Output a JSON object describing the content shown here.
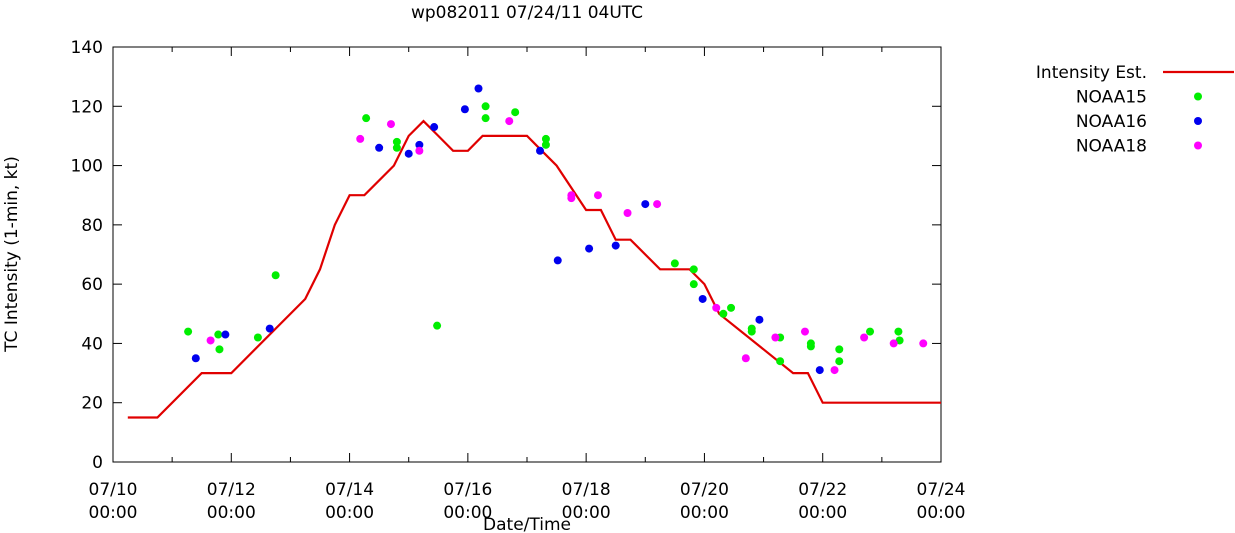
{
  "chart_data": {
    "type": "scatter",
    "title": "wp082011 07/24/11 04UTC",
    "xlabel": "Date/Time",
    "ylabel": "TC Intensity (1-min, kt)",
    "xlim_days": [
      0,
      14
    ],
    "ylim": [
      0,
      140
    ],
    "x_ticks": [
      {
        "day": 0,
        "date": "07/10",
        "time": "00:00"
      },
      {
        "day": 2,
        "date": "07/12",
        "time": "00:00"
      },
      {
        "day": 4,
        "date": "07/14",
        "time": "00:00"
      },
      {
        "day": 6,
        "date": "07/16",
        "time": "00:00"
      },
      {
        "day": 8,
        "date": "07/18",
        "time": "00:00"
      },
      {
        "day": 10,
        "date": "07/20",
        "time": "00:00"
      },
      {
        "day": 12,
        "date": "07/22",
        "time": "00:00"
      },
      {
        "day": 14,
        "date": "07/24",
        "time": "00:00"
      }
    ],
    "y_ticks": [
      0,
      20,
      40,
      60,
      80,
      100,
      120,
      140
    ],
    "legend_position": "outside-right",
    "series": [
      {
        "name": "Intensity Est.",
        "kind": "line",
        "color": "#e00000",
        "points": [
          [
            0.25,
            15
          ],
          [
            0.75,
            15
          ],
          [
            1.5,
            30
          ],
          [
            2.0,
            30
          ],
          [
            3.25,
            55
          ],
          [
            3.5,
            65
          ],
          [
            3.75,
            80
          ],
          [
            4.0,
            90
          ],
          [
            4.25,
            90
          ],
          [
            4.75,
            100
          ],
          [
            5.0,
            110
          ],
          [
            5.25,
            115
          ],
          [
            5.5,
            110
          ],
          [
            5.75,
            105
          ],
          [
            6.0,
            105
          ],
          [
            6.25,
            110
          ],
          [
            7.0,
            110
          ],
          [
            7.25,
            105
          ],
          [
            7.5,
            100
          ],
          [
            8.0,
            85
          ],
          [
            8.25,
            85
          ],
          [
            8.5,
            75
          ],
          [
            8.75,
            75
          ],
          [
            9.25,
            65
          ],
          [
            9.75,
            65
          ],
          [
            10.0,
            60
          ],
          [
            10.25,
            50
          ],
          [
            11.5,
            30
          ],
          [
            11.75,
            30
          ],
          [
            12.0,
            20
          ],
          [
            14.0,
            20
          ]
        ]
      },
      {
        "name": "NOAA15",
        "kind": "points",
        "color": "#00ee00",
        "points": [
          [
            1.27,
            44
          ],
          [
            1.78,
            43
          ],
          [
            1.8,
            38
          ],
          [
            2.45,
            42
          ],
          [
            2.75,
            63
          ],
          [
            4.28,
            116
          ],
          [
            4.8,
            106
          ],
          [
            4.8,
            108
          ],
          [
            5.48,
            46
          ],
          [
            6.3,
            120
          ],
          [
            6.3,
            116
          ],
          [
            6.8,
            118
          ],
          [
            7.32,
            107
          ],
          [
            7.32,
            109
          ],
          [
            9.5,
            67
          ],
          [
            9.82,
            65
          ],
          [
            9.82,
            60
          ],
          [
            10.32,
            50
          ],
          [
            10.45,
            52
          ],
          [
            10.8,
            44
          ],
          [
            10.8,
            45
          ],
          [
            11.28,
            42
          ],
          [
            11.28,
            34
          ],
          [
            11.8,
            40
          ],
          [
            11.8,
            39
          ],
          [
            12.28,
            38
          ],
          [
            12.28,
            34
          ],
          [
            12.8,
            44
          ],
          [
            13.28,
            44
          ],
          [
            13.3,
            41
          ]
        ]
      },
      {
        "name": "NOAA16",
        "kind": "points",
        "color": "#0000ee",
        "points": [
          [
            1.4,
            35
          ],
          [
            1.9,
            43
          ],
          [
            2.65,
            45
          ],
          [
            4.5,
            106
          ],
          [
            5.0,
            104
          ],
          [
            5.18,
            107
          ],
          [
            5.43,
            113
          ],
          [
            5.95,
            119
          ],
          [
            6.18,
            126
          ],
          [
            7.22,
            105
          ],
          [
            7.52,
            68
          ],
          [
            8.05,
            72
          ],
          [
            8.5,
            73
          ],
          [
            9.0,
            87
          ],
          [
            9.97,
            55
          ],
          [
            10.93,
            48
          ],
          [
            11.95,
            31
          ]
        ]
      },
      {
        "name": "NOAA18",
        "kind": "points",
        "color": "#ff00ff",
        "points": [
          [
            1.65,
            41
          ],
          [
            4.18,
            109
          ],
          [
            4.7,
            114
          ],
          [
            5.18,
            105
          ],
          [
            6.7,
            115
          ],
          [
            7.75,
            89
          ],
          [
            7.75,
            90
          ],
          [
            8.2,
            90
          ],
          [
            8.7,
            84
          ],
          [
            9.2,
            87
          ],
          [
            10.2,
            52
          ],
          [
            10.7,
            35
          ],
          [
            11.2,
            42
          ],
          [
            11.7,
            44
          ],
          [
            12.2,
            31
          ],
          [
            12.7,
            42
          ],
          [
            13.2,
            40
          ],
          [
            13.7,
            40
          ]
        ]
      }
    ]
  }
}
